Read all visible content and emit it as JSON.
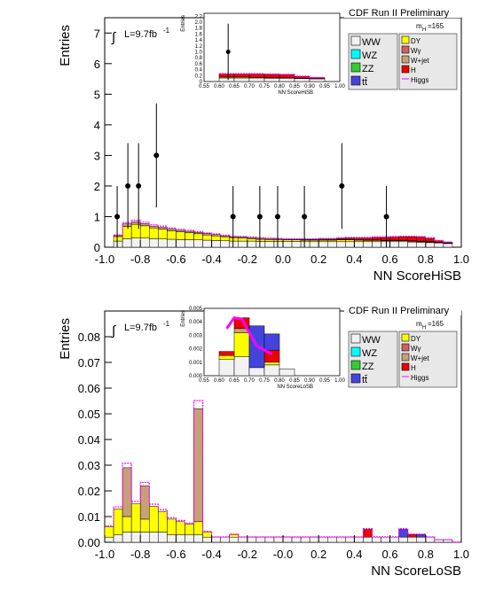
{
  "chart_data": [
    {
      "type": "bar",
      "header": "CDF Run II Preliminary",
      "mass_label": "m",
      "mass_sub": "H",
      "mass_value": "=165",
      "lumi": "L=9.7fb",
      "lumi_sup": "-1",
      "xlabel": "NN ScoreHiSB",
      "ylabel": "Entries",
      "xlim": [
        -1.0,
        1.0
      ],
      "ylim": [
        0,
        7.5
      ],
      "xticks": [
        "-1.0",
        "-0.8",
        "-0.6",
        "-0.4",
        "-0.2",
        "0.0",
        "0.2",
        "0.4",
        "0.6",
        "0.8",
        "1.0"
      ],
      "yticks": [
        "0",
        "1",
        "2",
        "3",
        "4",
        "5",
        "6",
        "7"
      ],
      "legend_left": [
        "WW",
        "WZ",
        "ZZ",
        "tt̄"
      ],
      "legend_right": [
        "DY",
        "Wγ",
        "W+jet",
        "H",
        "Higgs"
      ],
      "colors": {
        "WW": "#f2f2f2",
        "WZ": "#00ffff",
        "ZZ": "#33cc33",
        "tt": "#4444dd",
        "DY": "#ffff00",
        "Wg": "#d06060",
        "Wjet": "#c8a078",
        "H": "#ee0000",
        "Higgs": "#ff00ff"
      },
      "bin_edges": [
        -0.95,
        -0.9,
        -0.85,
        -0.8,
        -0.75,
        -0.7,
        -0.65,
        -0.6,
        -0.55,
        -0.5,
        -0.45,
        -0.4,
        -0.35,
        -0.3,
        -0.25,
        -0.2,
        -0.15,
        -0.1,
        -0.05,
        0.0,
        0.05,
        0.1,
        0.15,
        0.2,
        0.25,
        0.3,
        0.35,
        0.4,
        0.45,
        0.5,
        0.55,
        0.6,
        0.65,
        0.7,
        0.75,
        0.8,
        0.85,
        0.9,
        0.95
      ],
      "stack": {
        "WW": [
          0.2,
          0.28,
          0.3,
          0.3,
          0.28,
          0.27,
          0.26,
          0.25,
          0.25,
          0.24,
          0.23,
          0.22,
          0.21,
          0.2,
          0.2,
          0.2,
          0.19,
          0.19,
          0.19,
          0.19,
          0.19,
          0.18,
          0.18,
          0.18,
          0.18,
          0.18,
          0.18,
          0.18,
          0.18,
          0.18,
          0.18,
          0.18,
          0.18,
          0.17,
          0.16,
          0.15,
          0.14,
          0.12
        ],
        "DY": [
          0.15,
          0.4,
          0.45,
          0.4,
          0.35,
          0.32,
          0.28,
          0.25,
          0.22,
          0.2,
          0.17,
          0.15,
          0.13,
          0.11,
          0.1,
          0.08,
          0.07,
          0.06,
          0.06,
          0.05,
          0.05,
          0.05,
          0.05,
          0.05,
          0.05,
          0.06,
          0.06,
          0.05,
          0.04,
          0.04,
          0.03,
          0.03,
          0.03,
          0.02,
          0.02,
          0.02,
          0.01,
          0.01
        ],
        "Wjet": [
          0.03,
          0.08,
          0.08,
          0.07,
          0.06,
          0.06,
          0.05,
          0.05,
          0.05,
          0.04,
          0.04,
          0.04,
          0.03,
          0.03,
          0.03,
          0.03,
          0.03,
          0.03,
          0.02,
          0.02,
          0.02,
          0.02,
          0.02,
          0.02,
          0.02,
          0.02,
          0.02,
          0.02,
          0.02,
          0.02,
          0.02,
          0.02,
          0.02,
          0.02,
          0.02,
          0.02,
          0.01,
          0.01
        ],
        "H": [
          0.0,
          0.0,
          0.0,
          0.0,
          0.0,
          0.0,
          0.0,
          0.0,
          0.0,
          0.0,
          0.0,
          0.0,
          0.0,
          0.0,
          0.0,
          0.0,
          0.0,
          0.0,
          0.0,
          0.0,
          0.0,
          0.01,
          0.01,
          0.02,
          0.02,
          0.03,
          0.04,
          0.05,
          0.06,
          0.08,
          0.09,
          0.1,
          0.11,
          0.13,
          0.13,
          0.1,
          0.05,
          0.02
        ]
      },
      "data_points": [
        {
          "x": -0.93,
          "y": 1,
          "yerr": 1
        },
        {
          "x": -0.87,
          "y": 2,
          "yerr": 1.4
        },
        {
          "x": -0.81,
          "y": 2,
          "yerr": 1.4
        },
        {
          "x": -0.71,
          "y": 3,
          "yerr": 1.7
        },
        {
          "x": -0.28,
          "y": 1,
          "yerr": 1
        },
        {
          "x": -0.13,
          "y": 1,
          "yerr": 1
        },
        {
          "x": -0.03,
          "y": 1,
          "yerr": 1
        },
        {
          "x": 0.12,
          "y": 1,
          "yerr": 1
        },
        {
          "x": 0.33,
          "y": 2,
          "yerr": 1.4
        },
        {
          "x": 0.58,
          "y": 1,
          "yerr": 1
        }
      ],
      "inset": {
        "xlabel": "NN ScoreHiSB",
        "ylabel": "Entries",
        "xticks": [
          "0.55",
          "0.60",
          "0.65",
          "0.70",
          "0.75",
          "0.80",
          "0.85",
          "0.90",
          "0.95",
          "1.00"
        ],
        "yticks": [
          "0",
          "0.2",
          "0.4",
          "0.6",
          "0.8",
          "1.0",
          "1.2",
          "1.4",
          "1.6",
          "1.8",
          "2.0",
          "2.2"
        ],
        "xlim": [
          0.55,
          1.0
        ],
        "ylim": [
          0,
          2.3
        ],
        "bin_edges": [
          0.6,
          0.65,
          0.7,
          0.75,
          0.8,
          0.85,
          0.9,
          0.95
        ],
        "stack": {
          "WW": [
            0.12,
            0.12,
            0.12,
            0.11,
            0.11,
            0.1,
            0.09
          ],
          "DY": [
            0.03,
            0.03,
            0.02,
            0.02,
            0.02,
            0.01,
            0.01
          ],
          "H": [
            0.1,
            0.1,
            0.11,
            0.11,
            0.1,
            0.06,
            0.03
          ]
        },
        "data_points": [
          {
            "x": 0.63,
            "y": 1,
            "yerr": 0.95
          }
        ]
      }
    },
    {
      "type": "bar",
      "header": "CDF Run II Preliminary",
      "mass_label": "m",
      "mass_sub": "H",
      "mass_value": "=165",
      "lumi": "L=9.7fb",
      "lumi_sup": "-1",
      "xlabel": "NN ScoreLoSB",
      "ylabel": "Entries",
      "xlim": [
        -1.0,
        1.0
      ],
      "ylim": [
        0,
        0.09
      ],
      "xticks": [
        "-1.0",
        "-0.8",
        "-0.6",
        "-0.4",
        "-0.2",
        "-0.0",
        "0.2",
        "0.4",
        "0.6",
        "0.8",
        "1.0"
      ],
      "yticks": [
        "0.00",
        "0.01",
        "0.02",
        "0.03",
        "0.04",
        "0.05",
        "0.06",
        "0.07",
        "0.08"
      ],
      "legend_left": [
        "WW",
        "WZ",
        "ZZ",
        "tt̄"
      ],
      "legend_right": [
        "DY",
        "Wγ",
        "W+jet",
        "H",
        "Higgs"
      ],
      "colors": {
        "WW": "#f2f2f2",
        "WZ": "#00ffff",
        "ZZ": "#33cc33",
        "tt": "#4444dd",
        "DY": "#ffff00",
        "Wg": "#d06060",
        "Wjet": "#c8a078",
        "H": "#ee0000",
        "Higgs": "#ff00ff"
      },
      "bin_edges": [
        -1.0,
        -0.95,
        -0.9,
        -0.85,
        -0.8,
        -0.75,
        -0.7,
        -0.65,
        -0.6,
        -0.55,
        -0.5,
        -0.45,
        -0.4,
        -0.35,
        -0.3,
        -0.25,
        -0.2,
        -0.15,
        -0.1,
        -0.05,
        0.0,
        0.05,
        0.1,
        0.15,
        0.2,
        0.25,
        0.3,
        0.35,
        0.4,
        0.45,
        0.5,
        0.55,
        0.6,
        0.65,
        0.7,
        0.75,
        0.8,
        0.85,
        0.9,
        0.95,
        1.0
      ],
      "stack": {
        "WW": [
          0.002,
          0.003,
          0.004,
          0.004,
          0.004,
          0.004,
          0.004,
          0.003,
          0.003,
          0.003,
          0.003,
          0.002,
          0.002,
          0.002,
          0.002,
          0.002,
          0.002,
          0.002,
          0.002,
          0.002,
          0.002,
          0.002,
          0.002,
          0.002,
          0.002,
          0.002,
          0.002,
          0.002,
          0.002,
          0.002,
          0.002,
          0.002,
          0.002,
          0.002,
          0.002,
          0.002,
          0.002,
          0.001,
          0.001,
          0.0
        ],
        "DY": [
          0.004,
          0.01,
          0.006,
          0.011,
          0.005,
          0.01,
          0.008,
          0.006,
          0.005,
          0.004,
          0.005,
          0.002,
          0.0,
          0.0,
          0.001,
          0.0,
          0.0,
          0.0,
          0.0,
          0.0,
          0.0,
          0.0,
          0.0,
          0.0,
          0.0,
          0.0,
          0.0,
          0.0,
          0.0,
          0.0,
          0.0,
          0.0,
          0.0,
          0.0,
          0.0,
          0.0,
          0.0,
          0.0,
          0.0,
          0.0
        ],
        "Wjet": [
          0.0,
          0.0,
          0.019,
          0.0,
          0.013,
          0.0,
          0.0,
          0.0,
          0.0,
          0.0,
          0.044,
          0.0,
          0.0,
          0.0,
          0.0,
          0.0,
          0.0,
          0.0,
          0.0,
          0.0,
          0.0,
          0.0,
          0.0,
          0.0,
          0.0,
          0.0,
          0.0,
          0.0,
          0.0,
          0.0,
          0.0,
          0.0,
          0.0,
          0.0,
          0.0,
          0.0,
          0.0,
          0.0,
          0.0,
          0.0
        ],
        "H": [
          0.0,
          0.0,
          0.0,
          0.0,
          0.0,
          0.0,
          0.0,
          0.0,
          0.0,
          0.0,
          0.0,
          0.0,
          0.0,
          0.0,
          0.0,
          0.0,
          0.0,
          0.0,
          0.0,
          0.0,
          0.0,
          0.0,
          0.0,
          0.0,
          0.0,
          0.0,
          0.0,
          0.0,
          0.0,
          0.003,
          0.0,
          0.0,
          0.0,
          0.0,
          0.001,
          0.0,
          0.0,
          0.0,
          0.0,
          0.0
        ],
        "tt": [
          0.0,
          0.0,
          0.0,
          0.0,
          0.0,
          0.0,
          0.0,
          0.0,
          0.0,
          0.0,
          0.0,
          0.0,
          0.0,
          0.0,
          0.0,
          0.0,
          0.0,
          0.0,
          0.0,
          0.0,
          0.0,
          0.0,
          0.0,
          0.0,
          0.0,
          0.0,
          0.0,
          0.0,
          0.0,
          0.0,
          0.0,
          0.0,
          0.0,
          0.003,
          0.0,
          0.001,
          0.0,
          0.0,
          0.0,
          0.0
        ]
      },
      "inset": {
        "xlabel": "NN ScoreLoSB",
        "ylabel": "Entries",
        "xticks": [
          "0.55",
          "0.60",
          "0.65",
          "0.70",
          "0.75",
          "0.80",
          "0.85",
          "0.90",
          "0.95",
          "1.00"
        ],
        "yticks": [
          "0.000",
          "0.001",
          "0.002",
          "0.003",
          "0.004",
          "0.005"
        ],
        "xlim": [
          0.55,
          1.0
        ],
        "ylim": [
          0,
          0.005
        ],
        "bin_edges": [
          0.6,
          0.65,
          0.7,
          0.75,
          0.8,
          0.85
        ],
        "stack": {
          "WW": [
            0.0012,
            0.0014,
            0.0006,
            0.0008,
            0.0005
          ],
          "DY": [
            0.0003,
            0.0018,
            0.0,
            0.0002,
            0.0
          ],
          "Wjet": [
            0.0,
            0.0003,
            0.0,
            0.0,
            0.0
          ],
          "H": [
            0.0003,
            0.0008,
            0.0,
            0.0009,
            0.0
          ],
          "tt": [
            0.0,
            0.0,
            0.0031,
            0.0012,
            0.0
          ]
        },
        "higgs_line": [
          {
            "x": 0.625,
            "y": 0.0035
          },
          {
            "x": 0.65,
            "y": 0.0043
          },
          {
            "x": 0.675,
            "y": 0.0042
          },
          {
            "x": 0.725,
            "y": 0.0022
          },
          {
            "x": 0.775,
            "y": 0.0016
          }
        ]
      }
    }
  ]
}
